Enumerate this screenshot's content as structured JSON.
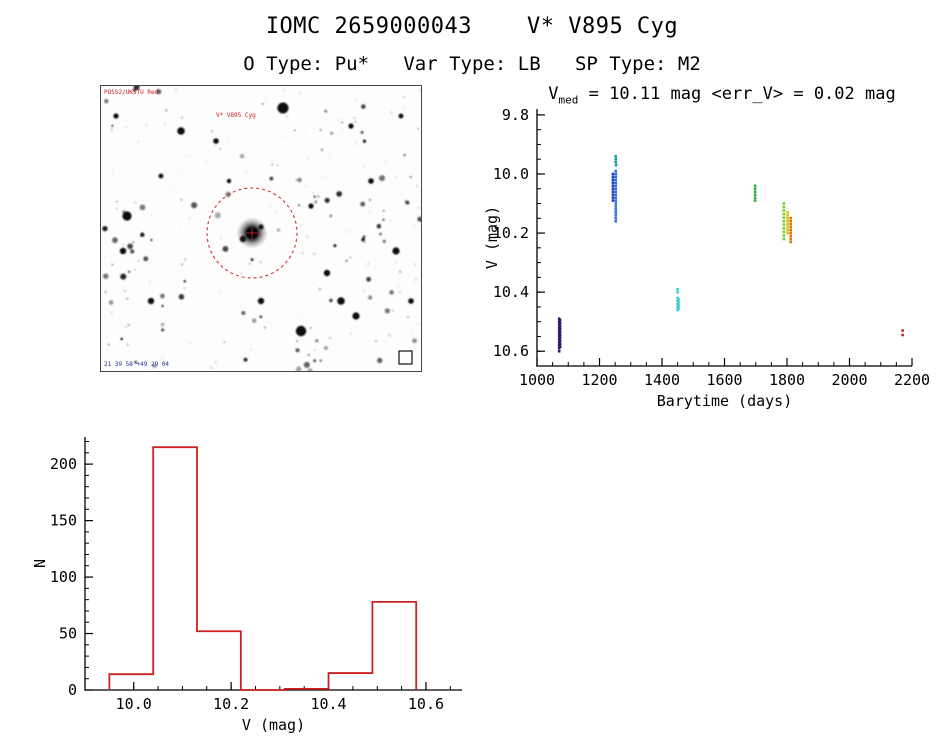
{
  "header": {
    "title": "IOMC 2659000043    V* V895 Cyg",
    "subtitle": "O Type: Pu*   Var Type: LB   SP Type: M2"
  },
  "finder": {
    "survey_label": "POSS2/UKSTU Red",
    "star_label": "V* V895 Cyg",
    "coords_label": "21 39 58 +49 29 04"
  },
  "chart_data": [
    {
      "id": "lightcurve",
      "type": "scatter",
      "title_prefix": "V",
      "title_sub": "med",
      "title_rest": " = 10.11 mag <err_V> = 0.02 mag",
      "v_med_mag": 10.11,
      "err_v_mag": 0.02,
      "xlabel": "Barytime (days)",
      "ylabel": "V (mag)",
      "xlim": [
        1000,
        2200
      ],
      "ylim": [
        9.78,
        10.65
      ],
      "y_inverted": true,
      "xticks": [
        1000,
        1200,
        1400,
        1600,
        1800,
        2000,
        2200
      ],
      "yticks": [
        9.8,
        10.0,
        10.2,
        10.4,
        10.6
      ],
      "x_minor_step": 50,
      "y_minor_step": 0.05,
      "xtick_decimals": 0,
      "ytick_decimals": 1,
      "legend": "none",
      "grid": false,
      "series": [
        {
          "name": "epoch-1070",
          "color": "#301070",
          "points": [
            [
              1071,
              10.49
            ],
            [
              1071,
              10.5
            ],
            [
              1071,
              10.51
            ],
            [
              1071,
              10.52
            ],
            [
              1071,
              10.53
            ],
            [
              1071,
              10.54
            ],
            [
              1071,
              10.55
            ],
            [
              1071,
              10.56
            ],
            [
              1071,
              10.57
            ],
            [
              1071,
              10.58
            ],
            [
              1071,
              10.59
            ],
            [
              1071,
              10.6
            ],
            [
              1074,
              10.495
            ],
            [
              1074,
              10.505
            ],
            [
              1074,
              10.515
            ],
            [
              1074,
              10.525
            ],
            [
              1074,
              10.535
            ],
            [
              1074,
              10.545
            ],
            [
              1074,
              10.555
            ],
            [
              1074,
              10.565
            ],
            [
              1074,
              10.575
            ],
            [
              1074,
              10.585
            ]
          ]
        },
        {
          "name": "epoch-1243",
          "color": "#1f3fc0",
          "points": [
            [
              1243,
              10.0
            ],
            [
              1243,
              10.01
            ],
            [
              1243,
              10.02
            ],
            [
              1243,
              10.03
            ],
            [
              1243,
              10.04
            ],
            [
              1243,
              10.05
            ],
            [
              1243,
              10.06
            ],
            [
              1243,
              10.07
            ],
            [
              1243,
              10.08
            ],
            [
              1243,
              10.09
            ]
          ]
        },
        {
          "name": "epoch-1252",
          "color": "#2a6fd4",
          "points": [
            [
              1252,
              9.99
            ],
            [
              1252,
              10.0
            ],
            [
              1252,
              10.01
            ],
            [
              1252,
              10.02
            ],
            [
              1252,
              10.03
            ],
            [
              1252,
              10.04
            ],
            [
              1252,
              10.05
            ],
            [
              1252,
              10.06
            ],
            [
              1252,
              10.07
            ],
            [
              1252,
              10.08
            ],
            [
              1252,
              10.09
            ],
            [
              1252,
              10.1
            ],
            [
              1252,
              10.11
            ],
            [
              1252,
              10.12
            ],
            [
              1252,
              10.13
            ],
            [
              1252,
              10.14
            ],
            [
              1252,
              10.15
            ],
            [
              1252,
              10.16
            ]
          ]
        },
        {
          "name": "epoch-1252-upper",
          "color": "#0a9e96",
          "points": [
            [
              1252,
              9.94
            ],
            [
              1252,
              9.95
            ],
            [
              1252,
              9.96
            ],
            [
              1253,
              9.97
            ]
          ]
        },
        {
          "name": "epoch-1450",
          "color": "#35d0c8",
          "points": [
            [
              1450,
              10.39
            ],
            [
              1450,
              10.4
            ],
            [
              1450,
              10.42
            ],
            [
              1450,
              10.43
            ],
            [
              1450,
              10.44
            ],
            [
              1450,
              10.45
            ],
            [
              1450,
              10.46
            ],
            [
              1453,
              10.425
            ],
            [
              1453,
              10.435
            ],
            [
              1453,
              10.445
            ],
            [
              1453,
              10.455
            ]
          ]
        },
        {
          "name": "epoch-1698",
          "color": "#2fae45",
          "points": [
            [
              1698,
              10.04
            ],
            [
              1698,
              10.05
            ],
            [
              1698,
              10.06
            ],
            [
              1698,
              10.07
            ],
            [
              1698,
              10.08
            ],
            [
              1698,
              10.09
            ]
          ]
        },
        {
          "name": "epoch-1790",
          "color": "#77cc33",
          "points": [
            [
              1790,
              10.1
            ],
            [
              1790,
              10.112
            ],
            [
              1790,
              10.124
            ],
            [
              1790,
              10.136
            ],
            [
              1790,
              10.148
            ],
            [
              1790,
              10.16
            ],
            [
              1790,
              10.172
            ],
            [
              1790,
              10.184
            ],
            [
              1790,
              10.196
            ],
            [
              1790,
              10.208
            ],
            [
              1790,
              10.22
            ]
          ]
        },
        {
          "name": "epoch-1802",
          "color": "#d4c400",
          "points": [
            [
              1802,
              10.13
            ],
            [
              1802,
              10.14
            ],
            [
              1802,
              10.15
            ],
            [
              1802,
              10.16
            ],
            [
              1802,
              10.17
            ],
            [
              1802,
              10.18
            ],
            [
              1802,
              10.19
            ],
            [
              1802,
              10.2
            ]
          ]
        },
        {
          "name": "epoch-1812",
          "color": "#dd7711",
          "points": [
            [
              1812,
              10.15
            ],
            [
              1812,
              10.16
            ],
            [
              1812,
              10.17
            ],
            [
              1812,
              10.18
            ],
            [
              1812,
              10.19
            ],
            [
              1812,
              10.2
            ],
            [
              1812,
              10.21
            ],
            [
              1812,
              10.22
            ],
            [
              1812,
              10.23
            ]
          ]
        },
        {
          "name": "epoch-2170",
          "color": "#cc2222",
          "points": [
            [
              2170,
              10.53
            ],
            [
              2170,
              10.545
            ]
          ]
        }
      ]
    },
    {
      "id": "histogram",
      "type": "histogram",
      "color": "#cc2222",
      "xlabel": "V (mag)",
      "ylabel": "N",
      "xlim": [
        9.9,
        10.674
      ],
      "ylim": [
        0,
        224
      ],
      "xticks": [
        10.0,
        10.2,
        10.4,
        10.6
      ],
      "yticks": [
        0,
        50,
        100,
        150,
        200
      ],
      "x_minor_step": 0.05,
      "y_minor_step": 10,
      "xtick_decimals": 1,
      "ytick_decimals": 0,
      "grid": false,
      "bin_edges": [
        9.95,
        10.04,
        10.13,
        10.22,
        10.31,
        10.4,
        10.49,
        10.58
      ],
      "counts": [
        14,
        215,
        52,
        0,
        1,
        15,
        78
      ]
    }
  ]
}
